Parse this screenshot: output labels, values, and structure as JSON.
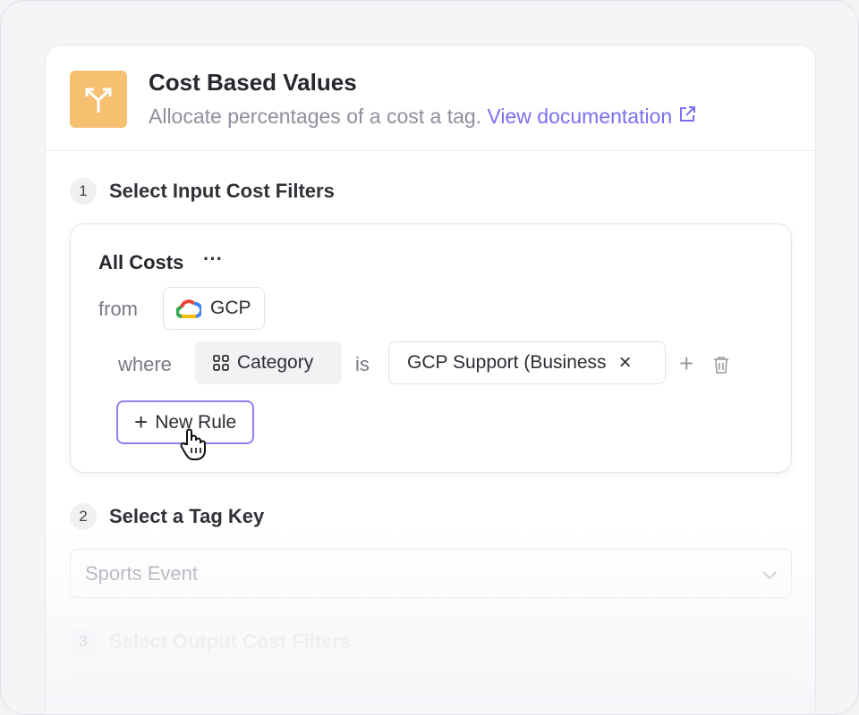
{
  "header": {
    "title": "Cost Based Values",
    "subtitle": "Allocate percentages of a cost a tag.",
    "doc_link": "View documentation",
    "icon": "split-arrows-icon",
    "accent": "#f6c071",
    "link_color": "#7b6ff0"
  },
  "step1": {
    "num": "1",
    "title": "Select Input Cost Filters",
    "filter_title": "All Costs",
    "more": "···",
    "from_label": "from",
    "provider": "GCP",
    "where_label": "where",
    "field": "Category",
    "is_label": "is",
    "value": "GCP Support (Business",
    "new_rule": "New Rule"
  },
  "step2": {
    "num": "2",
    "title": "Select a Tag Key",
    "selected": "Sports Event"
  },
  "step3": {
    "num": "3",
    "title": "Select Output Cost Filters"
  }
}
